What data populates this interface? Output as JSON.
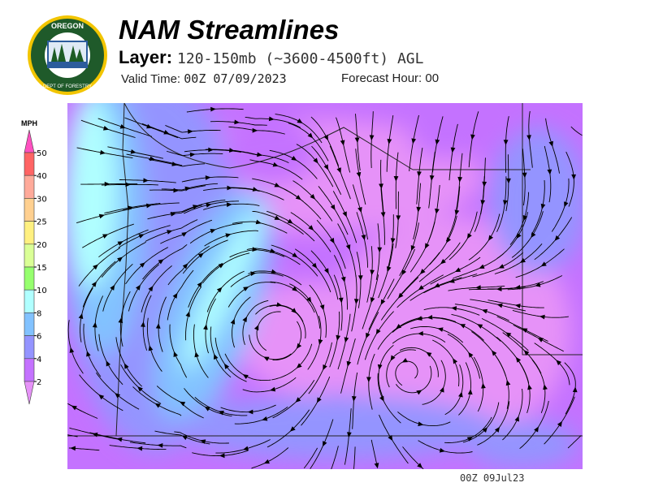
{
  "header": {
    "title": "NAM Streamlines",
    "layer_label": "Layer:",
    "layer_value": "120-150mb (~3600-4500ft) AGL",
    "valid_label": "Valid Time:",
    "valid_value": "00Z 07/09/2023",
    "forecast_label": "Forecast Hour:",
    "forecast_value": "00"
  },
  "logo": {
    "top_text": "OREGON",
    "bottom_text": "DEPARTMENT OF FORESTRY",
    "colors": {
      "ring": "#f2c500",
      "field": "#1f5a2a"
    }
  },
  "legend": {
    "unit": "MPH",
    "ticks": [
      "50",
      "40",
      "30",
      "25",
      "20",
      "15",
      "10",
      "8",
      "6",
      "4",
      "2"
    ],
    "colors": {
      "over_50": "#ff50c0",
      "40_50": "#ff6464",
      "30_40": "#ffaa9a",
      "25_30": "#ffd090",
      "20_25": "#fff080",
      "15_20": "#daff96",
      "10_15": "#96ff6e",
      "8_10": "#b0ffff",
      "6_8": "#82c2ff",
      "4_6": "#9494ff",
      "2_4": "#c472ff",
      "under_2": "#e692f8"
    }
  },
  "footer": {
    "timestamp": "00Z 09Jul23"
  }
}
